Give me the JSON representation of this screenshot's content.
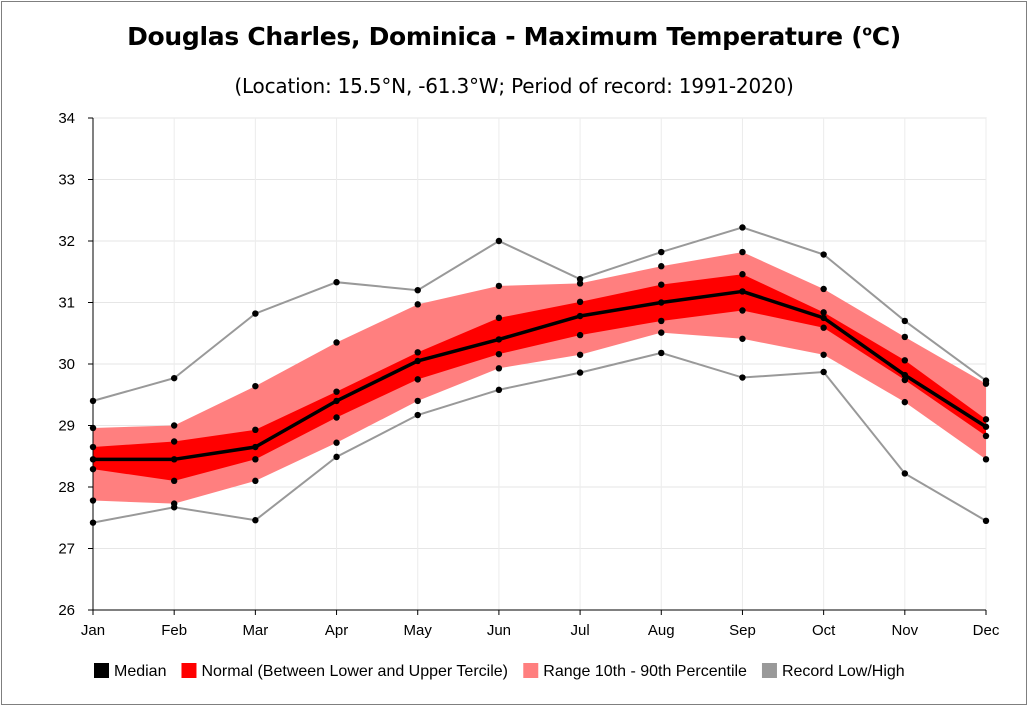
{
  "title": {
    "main": "Douglas Charles, Dominica - Maximum Temperature (",
    "sup": "o",
    "suffix": "C)"
  },
  "subtitle": "(Location: 15.5°N, -61.3°W; Period of record: 1991-2020)",
  "chart_data": {
    "type": "line",
    "categories": [
      "Jan",
      "Feb",
      "Mar",
      "Apr",
      "May",
      "Jun",
      "Jul",
      "Aug",
      "Sep",
      "Oct",
      "Nov",
      "Dec"
    ],
    "ylim": [
      26,
      34
    ],
    "yticks": [
      26,
      27,
      28,
      29,
      30,
      31,
      32,
      33,
      34
    ],
    "grid": true,
    "legend_placement": "bottom",
    "series": [
      {
        "name": "Record Low/High",
        "key": "record_high",
        "color": "#999999",
        "values": [
          29.4,
          29.77,
          30.82,
          31.33,
          31.2,
          32.0,
          31.38,
          31.82,
          32.22,
          31.78,
          30.7,
          29.73
        ]
      },
      {
        "name": "Record Low/High",
        "key": "record_low",
        "color": "#999999",
        "values": [
          27.42,
          27.67,
          27.46,
          28.49,
          29.17,
          29.58,
          29.86,
          30.18,
          29.78,
          29.87,
          28.22,
          27.45
        ]
      },
      {
        "name": "Range 10th - 90th Percentile",
        "key": "p90",
        "color": "#ff7f7f",
        "values": [
          28.96,
          29.0,
          29.64,
          30.35,
          30.97,
          31.27,
          31.31,
          31.59,
          31.82,
          31.22,
          30.44,
          29.68
        ]
      },
      {
        "name": "Range 10th - 90th Percentile",
        "key": "p10",
        "color": "#ff7f7f",
        "values": [
          27.78,
          27.73,
          28.1,
          28.72,
          29.4,
          29.93,
          30.15,
          30.51,
          30.41,
          30.15,
          29.38,
          28.45
        ]
      },
      {
        "name": "Normal (Between Lower and Upper Tercile)",
        "key": "upper_tercile",
        "color": "#ff0000",
        "values": [
          28.65,
          28.74,
          28.93,
          29.55,
          30.19,
          30.75,
          31.01,
          31.29,
          31.46,
          30.84,
          30.06,
          29.1
        ]
      },
      {
        "name": "Normal (Between Lower and Upper Tercile)",
        "key": "lower_tercile",
        "color": "#ff0000",
        "values": [
          28.29,
          28.1,
          28.45,
          29.13,
          29.75,
          30.16,
          30.47,
          30.7,
          30.87,
          30.59,
          29.74,
          28.83
        ]
      },
      {
        "name": "Median",
        "key": "median",
        "color": "#000000",
        "values": [
          28.45,
          28.45,
          28.65,
          29.4,
          30.05,
          30.4,
          30.78,
          31.0,
          31.18,
          30.75,
          29.82,
          28.98
        ]
      }
    ],
    "legend": [
      {
        "label": "Median",
        "color": "#000000"
      },
      {
        "label": "Normal (Between Lower and Upper Tercile)",
        "color": "#ff0000"
      },
      {
        "label": "Range 10th - 90th Percentile",
        "color": "#ff7f7f"
      },
      {
        "label": "Record Low/High",
        "color": "#999999"
      }
    ]
  }
}
